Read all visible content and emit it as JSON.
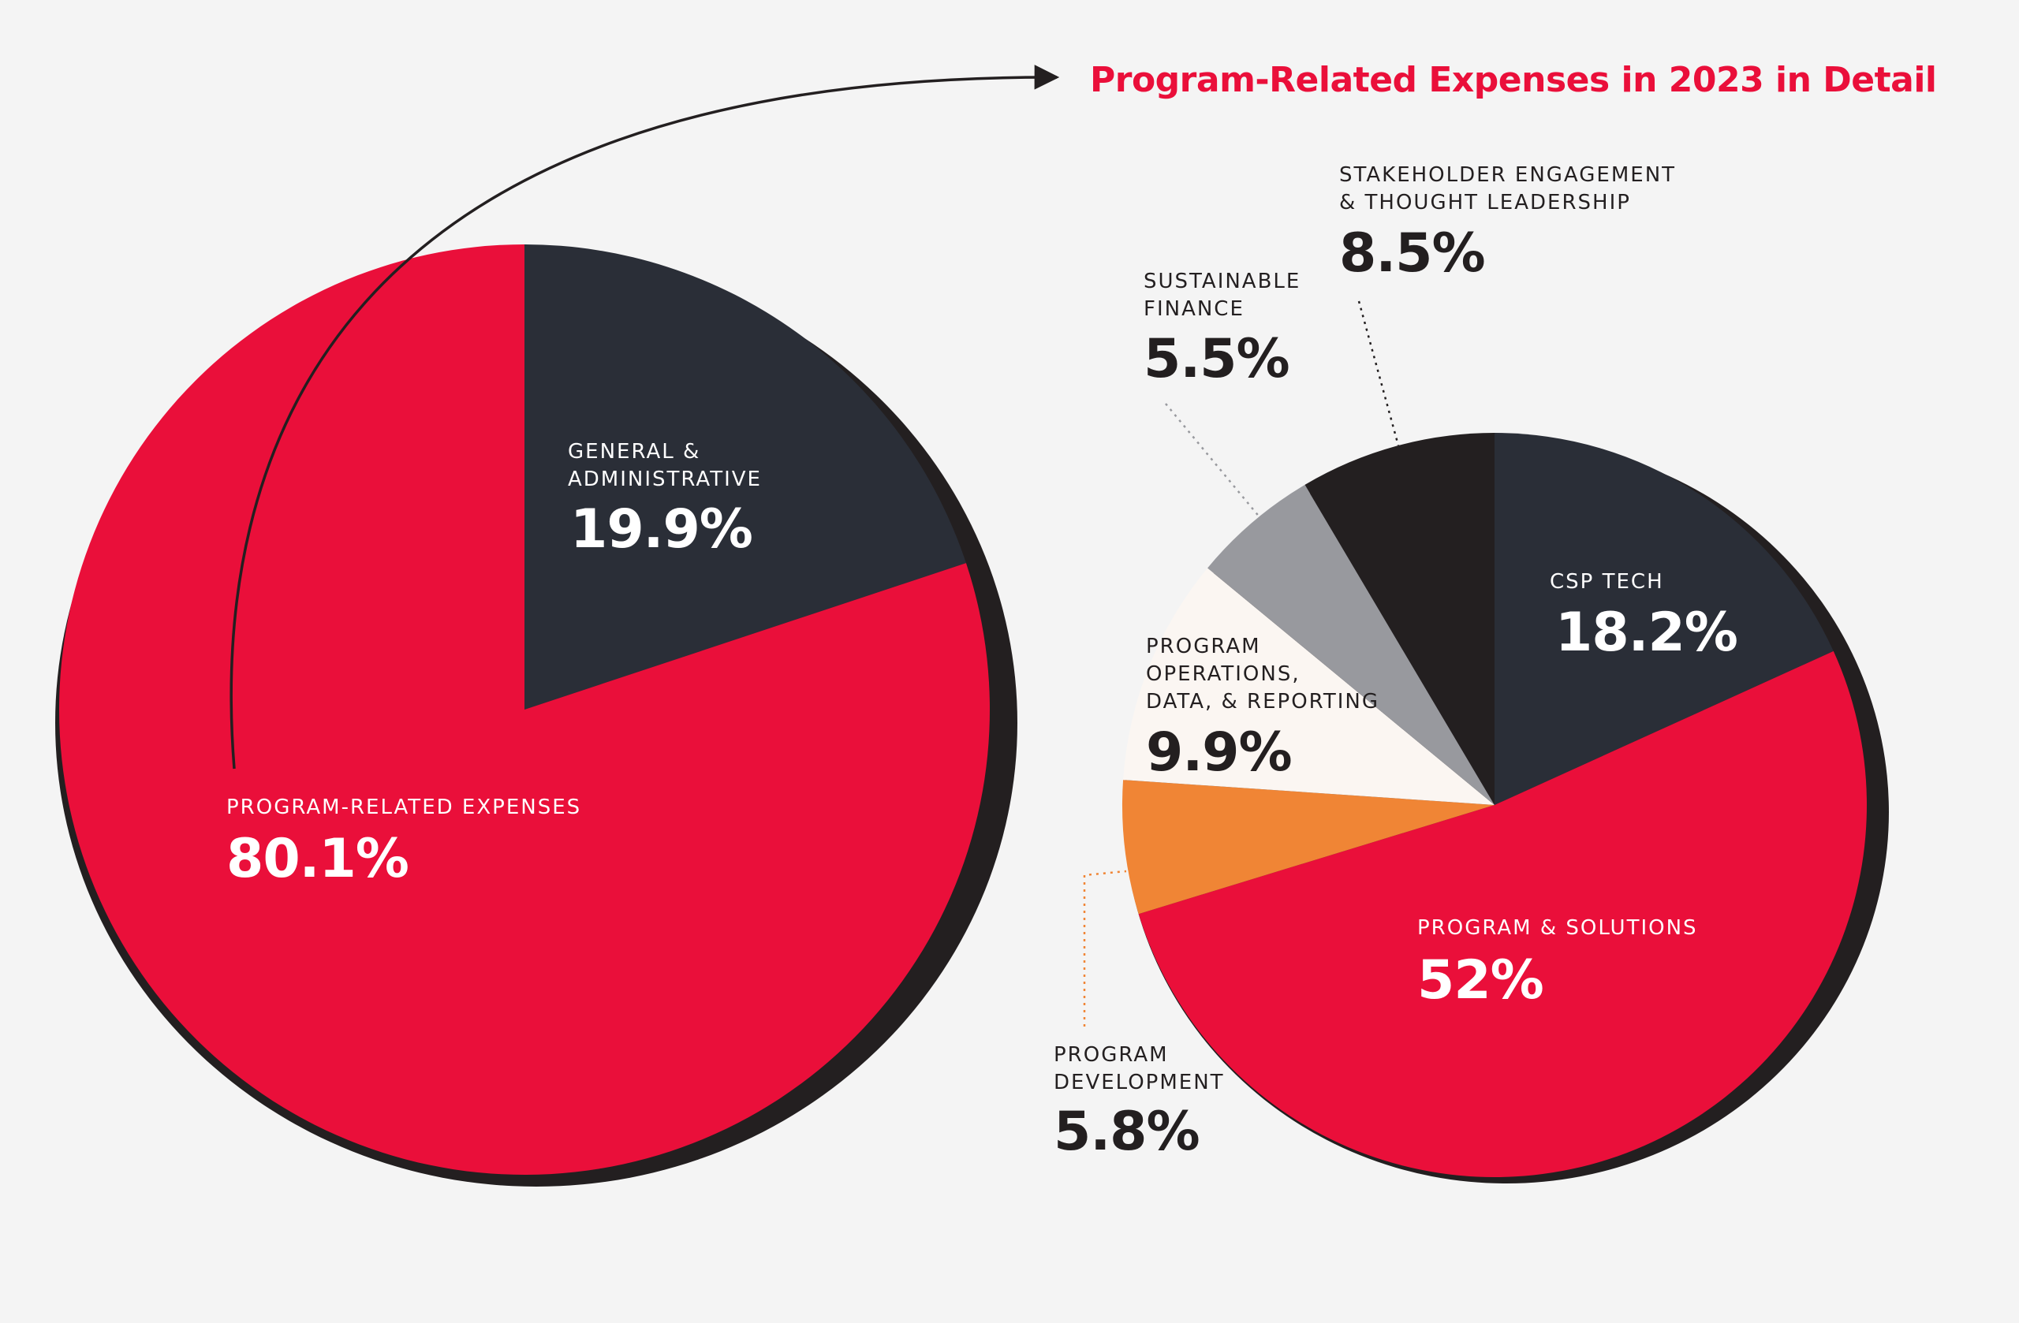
{
  "chart_data": [
    {
      "type": "pie",
      "slices": [
        {
          "label": "GENERAL & ADMINISTRATIVE",
          "value": 19.9,
          "display": "19.9%",
          "color": "#2a2e37"
        },
        {
          "label": "PROGRAM-RELATED EXPENSES",
          "value": 80.1,
          "display": "80.1%",
          "color": "#ea0f3a"
        }
      ]
    },
    {
      "type": "pie",
      "title": "Program-Related Expenses in 2023 in Detail",
      "slices": [
        {
          "label": "CSP TECH",
          "value": 18.2,
          "display": "18.2%",
          "color": "#2a2e37"
        },
        {
          "label": "PROGRAM & SOLUTIONS",
          "value": 52,
          "display": "52%",
          "color": "#ea0f3a"
        },
        {
          "label": "PROGRAM DEVELOPMENT",
          "value": 5.8,
          "display": "5.8%",
          "color": "#f08535"
        },
        {
          "label": "PROGRAM OPERATIONS, DATA, & REPORTING",
          "value": 9.9,
          "display": "9.9%",
          "color": "#fbf6f2"
        },
        {
          "label": "SUSTAINABLE FINANCE",
          "value": 5.5,
          "display": "5.5%",
          "color": "#98999e"
        },
        {
          "label": "STAKEHOLDER ENGAGEMENT & THOUGHT LEADERSHIP",
          "value": 8.5,
          "display": "8.5%",
          "color": "#231f20"
        }
      ]
    }
  ],
  "colors": {
    "accent": "#ea0f3a",
    "dark": "#2a2e37",
    "shadow": "#231f20",
    "background": "#f4f4f4"
  }
}
